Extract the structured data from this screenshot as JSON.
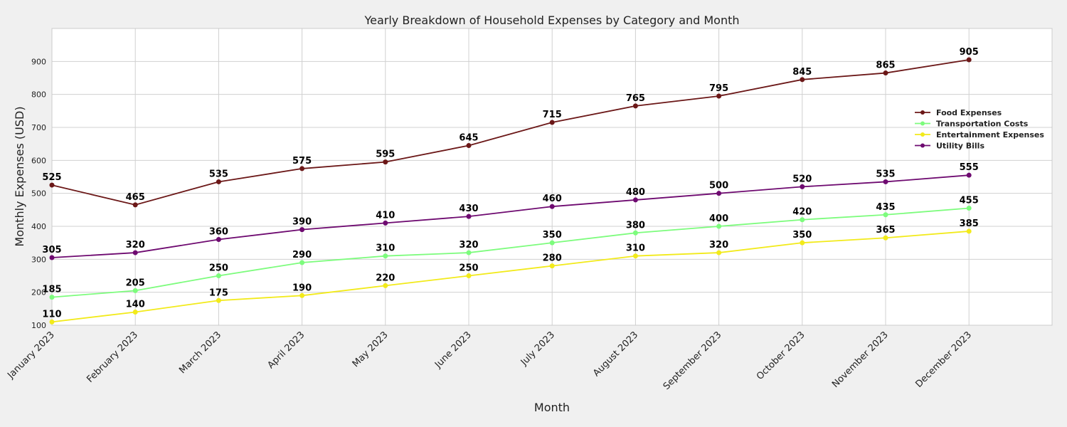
{
  "chart_data": {
    "type": "line",
    "title": "Yearly Breakdown of Household Expenses by Category and Month",
    "xlabel": "Month",
    "ylabel": "Monthly Expenses (USD)",
    "categories": [
      "January 2023",
      "February 2023",
      "March 2023",
      "April 2023",
      "May 2023",
      "June 2023",
      "July 2023",
      "August 2023",
      "September 2023",
      "October 2023",
      "November 2023",
      "December 2023"
    ],
    "ylim": [
      100,
      1000
    ],
    "yticks": [
      100,
      200,
      300,
      400,
      500,
      600,
      700,
      800,
      900
    ],
    "grid": true,
    "legend_position": "center-right",
    "series": [
      {
        "name": "Food Expenses",
        "color": "#6b1717",
        "values": [
          525,
          465,
          535,
          575,
          595,
          645,
          715,
          765,
          795,
          845,
          865,
          905
        ]
      },
      {
        "name": "Transportation Costs",
        "color": "#7dfc7d",
        "values": [
          185,
          205,
          250,
          290,
          310,
          320,
          350,
          380,
          400,
          420,
          435,
          455
        ]
      },
      {
        "name": "Entertainment Expenses",
        "color": "#f2ea1a",
        "values": [
          110,
          140,
          175,
          190,
          220,
          250,
          280,
          310,
          320,
          350,
          365,
          385
        ]
      },
      {
        "name": "Utility Bills",
        "color": "#6e0a70",
        "values": [
          305,
          320,
          360,
          390,
          410,
          430,
          460,
          480,
          500,
          520,
          535,
          555
        ]
      }
    ]
  }
}
